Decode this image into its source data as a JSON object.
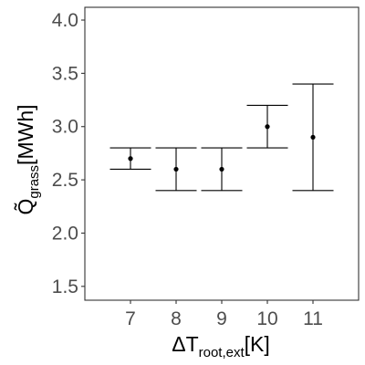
{
  "chart_data": {
    "type": "scatter",
    "subtype": "point-with-errorbars",
    "title": "",
    "xlabel": {
      "prefix": "ΔT",
      "subscript": "root,ext",
      "suffix": "[K]"
    },
    "ylabel": {
      "prefix": "Q̃",
      "subscript": "grass",
      "suffix": "[MWh]"
    },
    "x_ticks": [
      "7",
      "8",
      "9",
      "10",
      "11"
    ],
    "y_ticks": [
      "1.5",
      "2.0",
      "2.5",
      "3.0",
      "3.5",
      "4.0"
    ],
    "xlim": [
      6,
      12
    ],
    "ylim": [
      1.37,
      4.12
    ],
    "grid": false,
    "legend": "none",
    "points": [
      {
        "x": 7,
        "y": 2.7,
        "ymin": 2.6,
        "ymax": 2.8
      },
      {
        "x": 8,
        "y": 2.6,
        "ymin": 2.4,
        "ymax": 2.8
      },
      {
        "x": 9,
        "y": 2.6,
        "ymin": 2.4,
        "ymax": 2.8
      },
      {
        "x": 10,
        "y": 3.0,
        "ymin": 2.8,
        "ymax": 3.2
      },
      {
        "x": 11,
        "y": 2.9,
        "ymin": 2.4,
        "ymax": 3.4
      }
    ],
    "colors": {
      "point": "#000000",
      "axis": "#333333",
      "tick_text": "#4d4d4d"
    }
  }
}
